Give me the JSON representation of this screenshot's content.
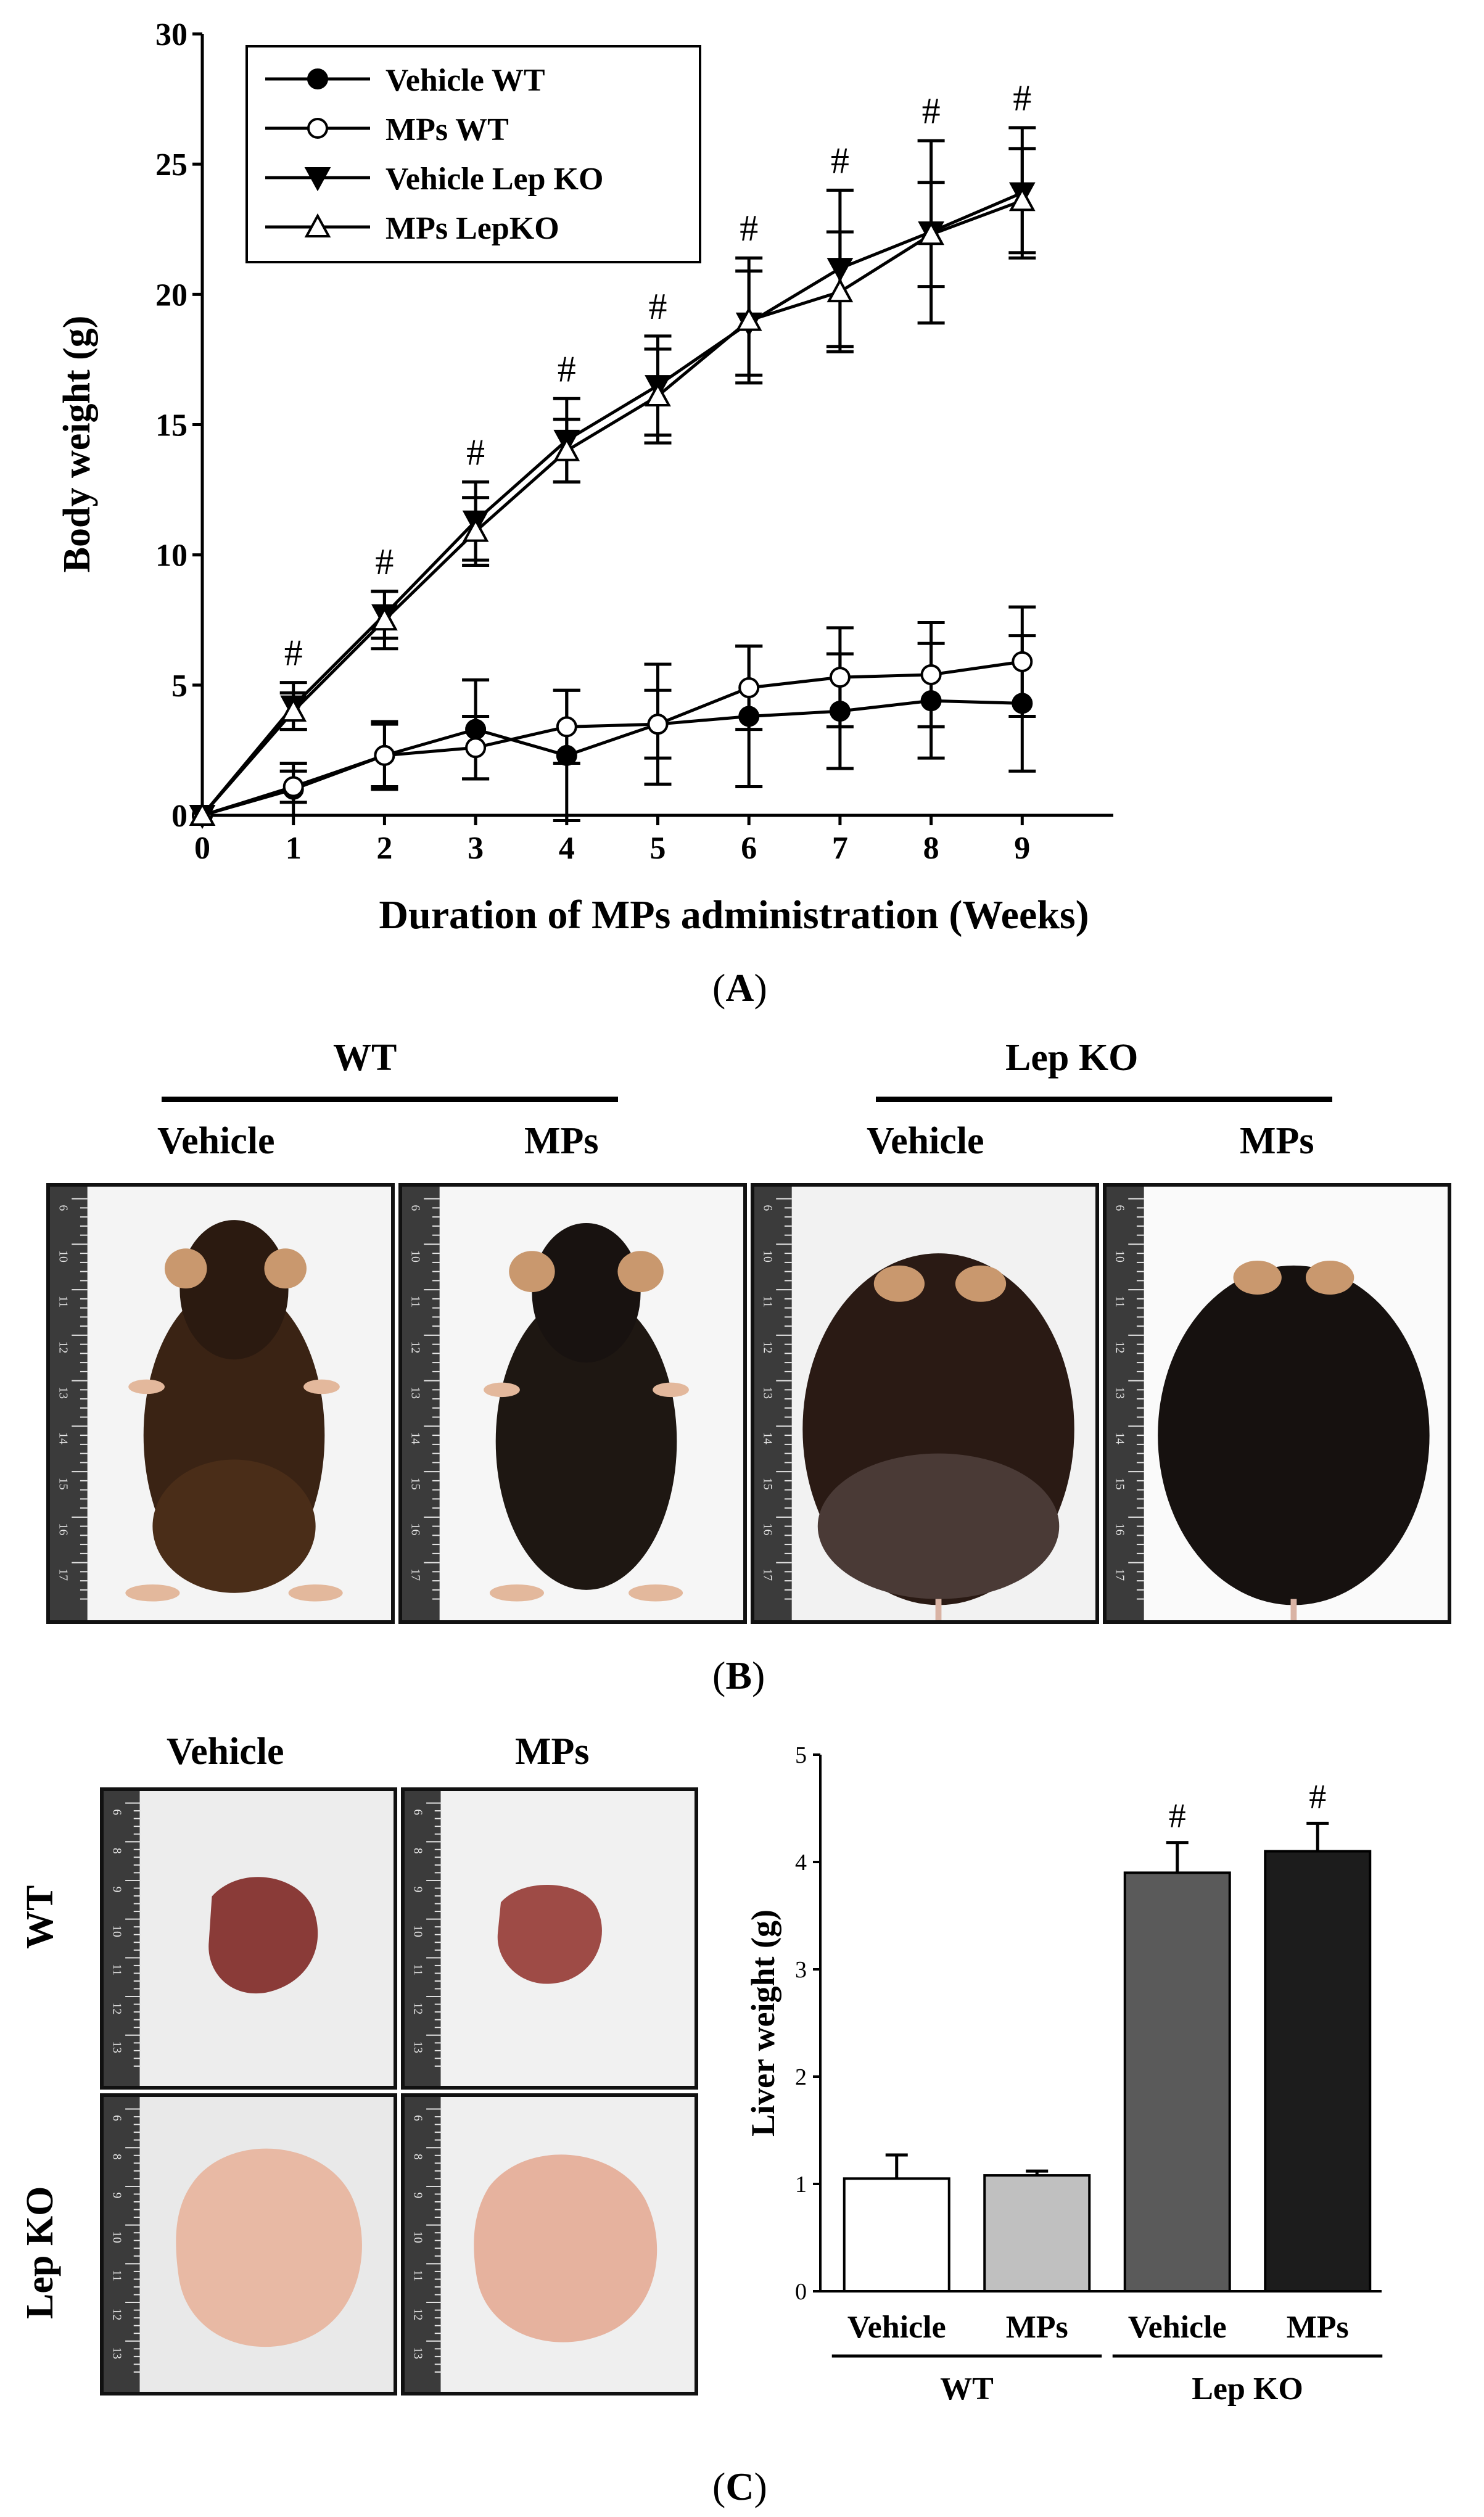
{
  "panel_labels": {
    "a": "A",
    "b": "B",
    "c": "C"
  },
  "chart_data": [
    {
      "type": "line",
      "panel": "A",
      "xlabel": "Duration of MPs administration (Weeks)",
      "ylabel": "Body weight (g)",
      "xlim": [
        0,
        10
      ],
      "ylim": [
        0,
        30
      ],
      "x_ticks": [
        0,
        1,
        2,
        3,
        4,
        5,
        6,
        7,
        8,
        9
      ],
      "y_ticks": [
        0,
        5,
        10,
        15,
        20,
        25,
        30
      ],
      "legend_position": "top-left",
      "annotation_symbol": "#",
      "annotated_x": [
        1,
        2,
        3,
        4,
        5,
        6,
        7,
        8,
        9
      ],
      "x": [
        0,
        1,
        2,
        3,
        4,
        5,
        6,
        7,
        8,
        9
      ],
      "series": [
        {
          "name": "Vehicle WT",
          "marker": "filled-circle",
          "values": [
            0,
            1.0,
            2.3,
            3.3,
            2.3,
            3.5,
            3.8,
            4.0,
            4.4,
            4.3
          ],
          "errors": [
            0,
            1.0,
            1.3,
            1.9,
            2.5,
            2.3,
            2.7,
            2.2,
            2.2,
            2.6
          ]
        },
        {
          "name": "MPs WT",
          "marker": "open-circle",
          "values": [
            0,
            1.1,
            2.3,
            2.6,
            3.4,
            3.5,
            4.9,
            5.3,
            5.4,
            5.9
          ],
          "errors": [
            0,
            0.6,
            1.2,
            1.2,
            1.4,
            1.3,
            1.6,
            1.9,
            2.0,
            2.1
          ]
        },
        {
          "name": "Vehicle Lep KO",
          "marker": "filled-triangle-down",
          "values": [
            0,
            4.2,
            7.7,
            11.3,
            14.4,
            16.5,
            18.9,
            21.0,
            22.4,
            23.9
          ],
          "errors": [
            0,
            0.9,
            0.9,
            1.5,
            1.6,
            1.9,
            2.0,
            3.0,
            3.5,
            2.5
          ]
        },
        {
          "name": "MPs LepKO",
          "marker": "open-triangle-up",
          "values": [
            0,
            4.0,
            7.5,
            10.9,
            14.0,
            16.1,
            19.0,
            20.1,
            22.3,
            23.6
          ],
          "errors": [
            0,
            0.7,
            1.1,
            1.3,
            1.2,
            1.8,
            2.4,
            2.3,
            2.0,
            2.0
          ]
        }
      ]
    },
    {
      "type": "bar",
      "panel": "C",
      "ylabel": "Liver weight (g)",
      "ylim": [
        0,
        5
      ],
      "y_ticks": [
        0,
        1,
        2,
        3,
        4,
        5
      ],
      "categories": [
        "Vehicle",
        "MPs",
        "Vehicle",
        "MPs"
      ],
      "groups": [
        {
          "name": "WT",
          "members": [
            0,
            1
          ]
        },
        {
          "name": "Lep KO",
          "members": [
            2,
            3
          ]
        }
      ],
      "values": [
        1.05,
        1.08,
        3.9,
        4.1
      ],
      "errors": [
        0.22,
        0.04,
        0.28,
        0.26
      ],
      "annotations": [
        "",
        "",
        "#",
        "#"
      ],
      "colors": [
        "#ffffff",
        "#c0c0c0",
        "#5a5a5a",
        "#1c1c1c"
      ]
    }
  ],
  "panel_b": {
    "group_labels": [
      "WT",
      "Lep KO"
    ],
    "column_labels": [
      "Vehicle",
      "MPs",
      "Vehicle",
      "MPs"
    ],
    "ruler_numbers": [
      "6",
      "10",
      "11",
      "12",
      "13",
      "14",
      "15",
      "16",
      "17"
    ]
  },
  "panel_c_photos": {
    "column_labels": [
      "Vehicle",
      "MPs"
    ],
    "row_labels": [
      "WT",
      "Lep KO"
    ],
    "ruler_numbers": [
      "6",
      "8",
      "9",
      "10",
      "11",
      "12",
      "13"
    ]
  }
}
